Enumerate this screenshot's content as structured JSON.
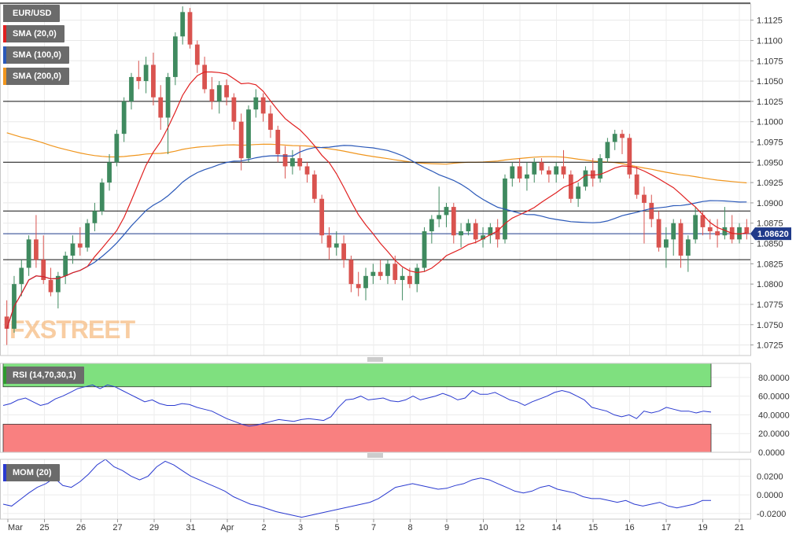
{
  "symbol": "EUR/USD",
  "legends": {
    "price": [
      {
        "label": "EUR/USD",
        "color": "#6b6b6b"
      },
      {
        "label": "SMA (20,0)",
        "color": "#e02020"
      },
      {
        "label": "SMA (100,0)",
        "color": "#2a58b8"
      },
      {
        "label": "SMA (200,0)",
        "color": "#f0961e"
      }
    ],
    "rsi": {
      "label": "RSI (14,70,30,1)",
      "color": "#2e9a2e"
    },
    "mom": {
      "label": "MOM (20)",
      "color": "#2a3ad0"
    }
  },
  "current_price_label": "1.08620",
  "watermark": "FXSTREET",
  "colors": {
    "up": "#3f8a5f",
    "down": "#d9534f",
    "sma20": "#e02020",
    "sma100": "#2a58b8",
    "sma200": "#f0961e",
    "rsi_line": "#2a3ad0",
    "mom_line": "#2a3ad0",
    "overbought_band": "#7fe07f",
    "oversold_band": "#f98080",
    "hline": "#111111",
    "price_line": "#1f3a8a"
  },
  "chart_data": [
    {
      "type": "candlestick",
      "title": "EUR/USD",
      "x_tick_labels": [
        "Mar",
        "25",
        "26",
        "27",
        "29",
        "31",
        "Apr",
        "2",
        "3",
        "5",
        "7",
        "8",
        "9",
        "10",
        "12",
        "14",
        "15",
        "16",
        "17",
        "19",
        "21"
      ],
      "ylim": [
        1.0712,
        1.1145
      ],
      "y_ticks": [
        "1.0725",
        "1.0750",
        "1.0775",
        "1.0800",
        "1.0825",
        "1.0850",
        "1.0875",
        "1.0900",
        "1.0925",
        "1.0950",
        "1.0975",
        "1.1000",
        "1.1025",
        "1.1050",
        "1.1075",
        "1.1100",
        "1.1125"
      ],
      "horizontal_levels": [
        1.1025,
        1.095,
        1.089,
        1.083
      ],
      "current_price": 1.0862,
      "candles": [
        [
          1.076,
          1.078,
          1.0725,
          1.0745
        ],
        [
          1.0745,
          1.081,
          1.074,
          1.08
        ],
        [
          1.08,
          1.083,
          1.0785,
          1.082
        ],
        [
          1.082,
          1.086,
          1.081,
          1.0855
        ],
        [
          1.0855,
          1.0885,
          1.082,
          1.083
        ],
        [
          1.083,
          1.086,
          1.08,
          1.0805
        ],
        [
          1.0805,
          1.082,
          1.0785,
          1.079
        ],
        [
          1.079,
          1.0815,
          1.077,
          1.081
        ],
        [
          1.081,
          1.084,
          1.08,
          1.0835
        ],
        [
          1.0835,
          1.086,
          1.0825,
          1.085
        ],
        [
          1.085,
          1.087,
          1.0835,
          1.0845
        ],
        [
          1.0845,
          1.088,
          1.084,
          1.0875
        ],
        [
          1.0875,
          1.09,
          1.0865,
          1.089
        ],
        [
          1.089,
          1.093,
          1.0885,
          1.0925
        ],
        [
          1.0925,
          1.096,
          1.0915,
          1.095
        ],
        [
          1.095,
          1.099,
          1.0945,
          1.0985
        ],
        [
          1.0985,
          1.103,
          1.0975,
          1.1025
        ],
        [
          1.1025,
          1.106,
          1.1015,
          1.1055
        ],
        [
          1.1055,
          1.1075,
          1.104,
          1.105
        ],
        [
          1.105,
          1.108,
          1.1035,
          1.107
        ],
        [
          1.107,
          1.1085,
          1.102,
          1.103
        ],
        [
          1.103,
          1.1045,
          1.099,
          1.1005
        ],
        [
          1.1005,
          1.106,
          1.096,
          1.1055
        ],
        [
          1.1055,
          1.111,
          1.1045,
          1.1105
        ],
        [
          1.1105,
          1.1142,
          1.1095,
          1.1135
        ],
        [
          1.1135,
          1.114,
          1.109,
          1.1095
        ],
        [
          1.1095,
          1.11,
          1.106,
          1.107
        ],
        [
          1.107,
          1.108,
          1.1035,
          1.104
        ],
        [
          1.104,
          1.1055,
          1.1015,
          1.1025
        ],
        [
          1.1025,
          1.105,
          1.101,
          1.1045
        ],
        [
          1.1045,
          1.1052,
          1.102,
          1.103
        ],
        [
          1.103,
          1.1035,
          1.099,
          1.1
        ],
        [
          1.1,
          1.101,
          1.094,
          1.0955
        ],
        [
          1.0955,
          1.102,
          1.095,
          1.1015
        ],
        [
          1.1015,
          1.104,
          1.1005,
          1.103
        ],
        [
          1.103,
          1.1035,
          1.1,
          1.101
        ],
        [
          1.101,
          1.102,
          1.098,
          1.099
        ],
        [
          1.099,
          1.0995,
          1.095,
          1.096
        ],
        [
          1.096,
          1.097,
          1.093,
          1.0945
        ],
        [
          1.0945,
          1.0965,
          1.0935,
          1.0955
        ],
        [
          1.0955,
          1.097,
          1.094,
          1.0945
        ],
        [
          1.0945,
          1.095,
          1.0925,
          1.0935
        ],
        [
          1.0935,
          1.094,
          1.09,
          1.0905
        ],
        [
          1.0905,
          1.091,
          1.085,
          1.086
        ],
        [
          1.086,
          1.087,
          1.083,
          1.0845
        ],
        [
          1.0845,
          1.0865,
          1.0835,
          1.085
        ],
        [
          1.085,
          1.086,
          1.082,
          1.083
        ],
        [
          1.083,
          1.0835,
          1.079,
          1.08
        ],
        [
          1.08,
          1.0815,
          1.0785,
          1.0795
        ],
        [
          1.0795,
          1.082,
          1.078,
          1.081
        ],
        [
          1.081,
          1.0825,
          1.08,
          1.0815
        ],
        [
          1.0815,
          1.083,
          1.0805,
          1.081
        ],
        [
          1.081,
          1.083,
          1.08,
          1.0825
        ],
        [
          1.0825,
          1.0835,
          1.08,
          1.0805
        ],
        [
          1.0805,
          1.082,
          1.078,
          1.081
        ],
        [
          1.081,
          1.082,
          1.0795,
          1.08
        ],
        [
          1.08,
          1.0825,
          1.079,
          1.082
        ],
        [
          1.082,
          1.087,
          1.0815,
          1.0865
        ],
        [
          1.0865,
          1.0885,
          1.085,
          1.088
        ],
        [
          1.088,
          1.092,
          1.087,
          1.0885
        ],
        [
          1.0885,
          1.09,
          1.087,
          1.0895
        ],
        [
          1.0895,
          1.09,
          1.085,
          1.086
        ],
        [
          1.086,
          1.0875,
          1.0845,
          1.0865
        ],
        [
          1.0865,
          1.088,
          1.086,
          1.0875
        ],
        [
          1.0875,
          1.088,
          1.085,
          1.0855
        ],
        [
          1.0855,
          1.087,
          1.0845,
          1.086
        ],
        [
          1.086,
          1.0875,
          1.085,
          1.087
        ],
        [
          1.087,
          1.088,
          1.0845,
          1.0855
        ],
        [
          1.0855,
          1.0935,
          1.085,
          1.093
        ],
        [
          1.093,
          1.095,
          1.092,
          1.0945
        ],
        [
          1.0945,
          1.0955,
          1.0925,
          1.093
        ],
        [
          1.093,
          1.095,
          1.0915,
          1.0935
        ],
        [
          1.0935,
          1.0955,
          1.0925,
          1.095
        ],
        [
          1.095,
          1.0955,
          1.0935,
          1.094
        ],
        [
          1.094,
          1.0945,
          1.0925,
          1.0935
        ],
        [
          1.0935,
          1.095,
          1.0925,
          1.0945
        ],
        [
          1.0945,
          1.0965,
          1.093,
          1.0935
        ],
        [
          1.0935,
          1.094,
          1.09,
          1.0905
        ],
        [
          1.0905,
          1.0925,
          1.0895,
          1.092
        ],
        [
          1.092,
          1.0945,
          1.0915,
          1.094
        ],
        [
          1.094,
          1.0955,
          1.092,
          1.093
        ],
        [
          1.093,
          1.096,
          1.0925,
          1.0955
        ],
        [
          1.0955,
          1.098,
          1.095,
          1.0975
        ],
        [
          1.0975,
          1.099,
          1.0965,
          1.0985
        ],
        [
          1.0985,
          1.099,
          1.096,
          1.098
        ],
        [
          1.098,
          1.0985,
          1.093,
          1.0935
        ],
        [
          1.0935,
          1.0945,
          1.0905,
          1.091
        ],
        [
          1.091,
          1.092,
          1.085,
          1.09
        ],
        [
          1.09,
          1.091,
          1.087,
          1.088
        ],
        [
          1.088,
          1.089,
          1.084,
          1.0845
        ],
        [
          1.0845,
          1.087,
          1.082,
          1.0855
        ],
        [
          1.0855,
          1.088,
          1.0835,
          1.0875
        ],
        [
          1.0875,
          1.088,
          1.082,
          1.0835
        ],
        [
          1.0835,
          1.086,
          1.0815,
          1.0855
        ],
        [
          1.0855,
          1.0895,
          1.085,
          1.0885
        ],
        [
          1.0885,
          1.089,
          1.086,
          1.087
        ],
        [
          1.087,
          1.088,
          1.0855,
          1.0865
        ],
        [
          1.0865,
          1.088,
          1.0845,
          1.086
        ],
        [
          1.086,
          1.0895,
          1.0855,
          1.087
        ],
        [
          1.087,
          1.0885,
          1.085,
          1.0855
        ],
        [
          1.0855,
          1.0875,
          1.085,
          1.087
        ],
        [
          1.087,
          1.088,
          1.0855,
          1.0862
        ]
      ]
    },
    {
      "type": "line",
      "title": "RSI (14,70,30,1)",
      "ylim": [
        0,
        95
      ],
      "y_ticks": [
        "0.0000",
        "20.0000",
        "40.0000",
        "60.0000",
        "80.0000"
      ],
      "bands": {
        "overbought": [
          70,
          95
        ],
        "oversold": [
          0,
          30
        ]
      },
      "values": [
        50,
        52,
        56,
        58,
        54,
        50,
        52,
        57,
        60,
        64,
        68,
        70,
        72,
        68,
        72,
        70,
        66,
        62,
        58,
        54,
        56,
        52,
        50,
        50,
        52,
        51,
        48,
        46,
        44,
        40,
        36,
        33,
        30,
        28,
        29,
        31,
        33,
        35,
        34,
        33,
        35,
        36,
        35,
        34,
        38,
        48,
        56,
        57,
        60,
        56,
        57,
        58,
        55,
        54,
        56,
        60,
        56,
        58,
        60,
        63,
        60,
        56,
        58,
        66,
        62,
        62,
        64,
        60,
        56,
        54,
        50,
        54,
        57,
        60,
        64,
        66,
        64,
        60,
        56,
        48,
        46,
        44,
        40,
        38,
        40,
        36,
        44,
        42,
        44,
        48,
        46,
        44,
        44,
        42,
        44,
        43
      ]
    },
    {
      "type": "line",
      "title": "MOM (20)",
      "ylim": [
        -0.026,
        0.038
      ],
      "y_ticks": [
        "-0.0200",
        "0.0000",
        "0.0200"
      ],
      "values": [
        -0.01,
        -0.012,
        -0.005,
        0.002,
        0.008,
        0.012,
        0.018,
        0.01,
        0.008,
        0.014,
        0.022,
        0.032,
        0.038,
        0.03,
        0.026,
        0.02,
        0.016,
        0.02,
        0.03,
        0.036,
        0.032,
        0.026,
        0.02,
        0.016,
        0.012,
        0.008,
        0.004,
        -0.002,
        -0.006,
        -0.01,
        -0.012,
        -0.015,
        -0.018,
        -0.02,
        -0.022,
        -0.024,
        -0.022,
        -0.02,
        -0.018,
        -0.016,
        -0.014,
        -0.012,
        -0.01,
        -0.008,
        -0.004,
        0.002,
        0.008,
        0.01,
        0.012,
        0.01,
        0.008,
        0.006,
        0.007,
        0.01,
        0.012,
        0.016,
        0.018,
        0.016,
        0.012,
        0.008,
        0.004,
        0.002,
        0.004,
        0.008,
        0.01,
        0.006,
        0.004,
        0.002,
        -0.002,
        -0.004,
        -0.004,
        -0.006,
        -0.008,
        -0.006,
        -0.01,
        -0.012,
        -0.01,
        -0.008,
        -0.012,
        -0.014,
        -0.012,
        -0.01,
        -0.006,
        -0.006
      ]
    }
  ]
}
